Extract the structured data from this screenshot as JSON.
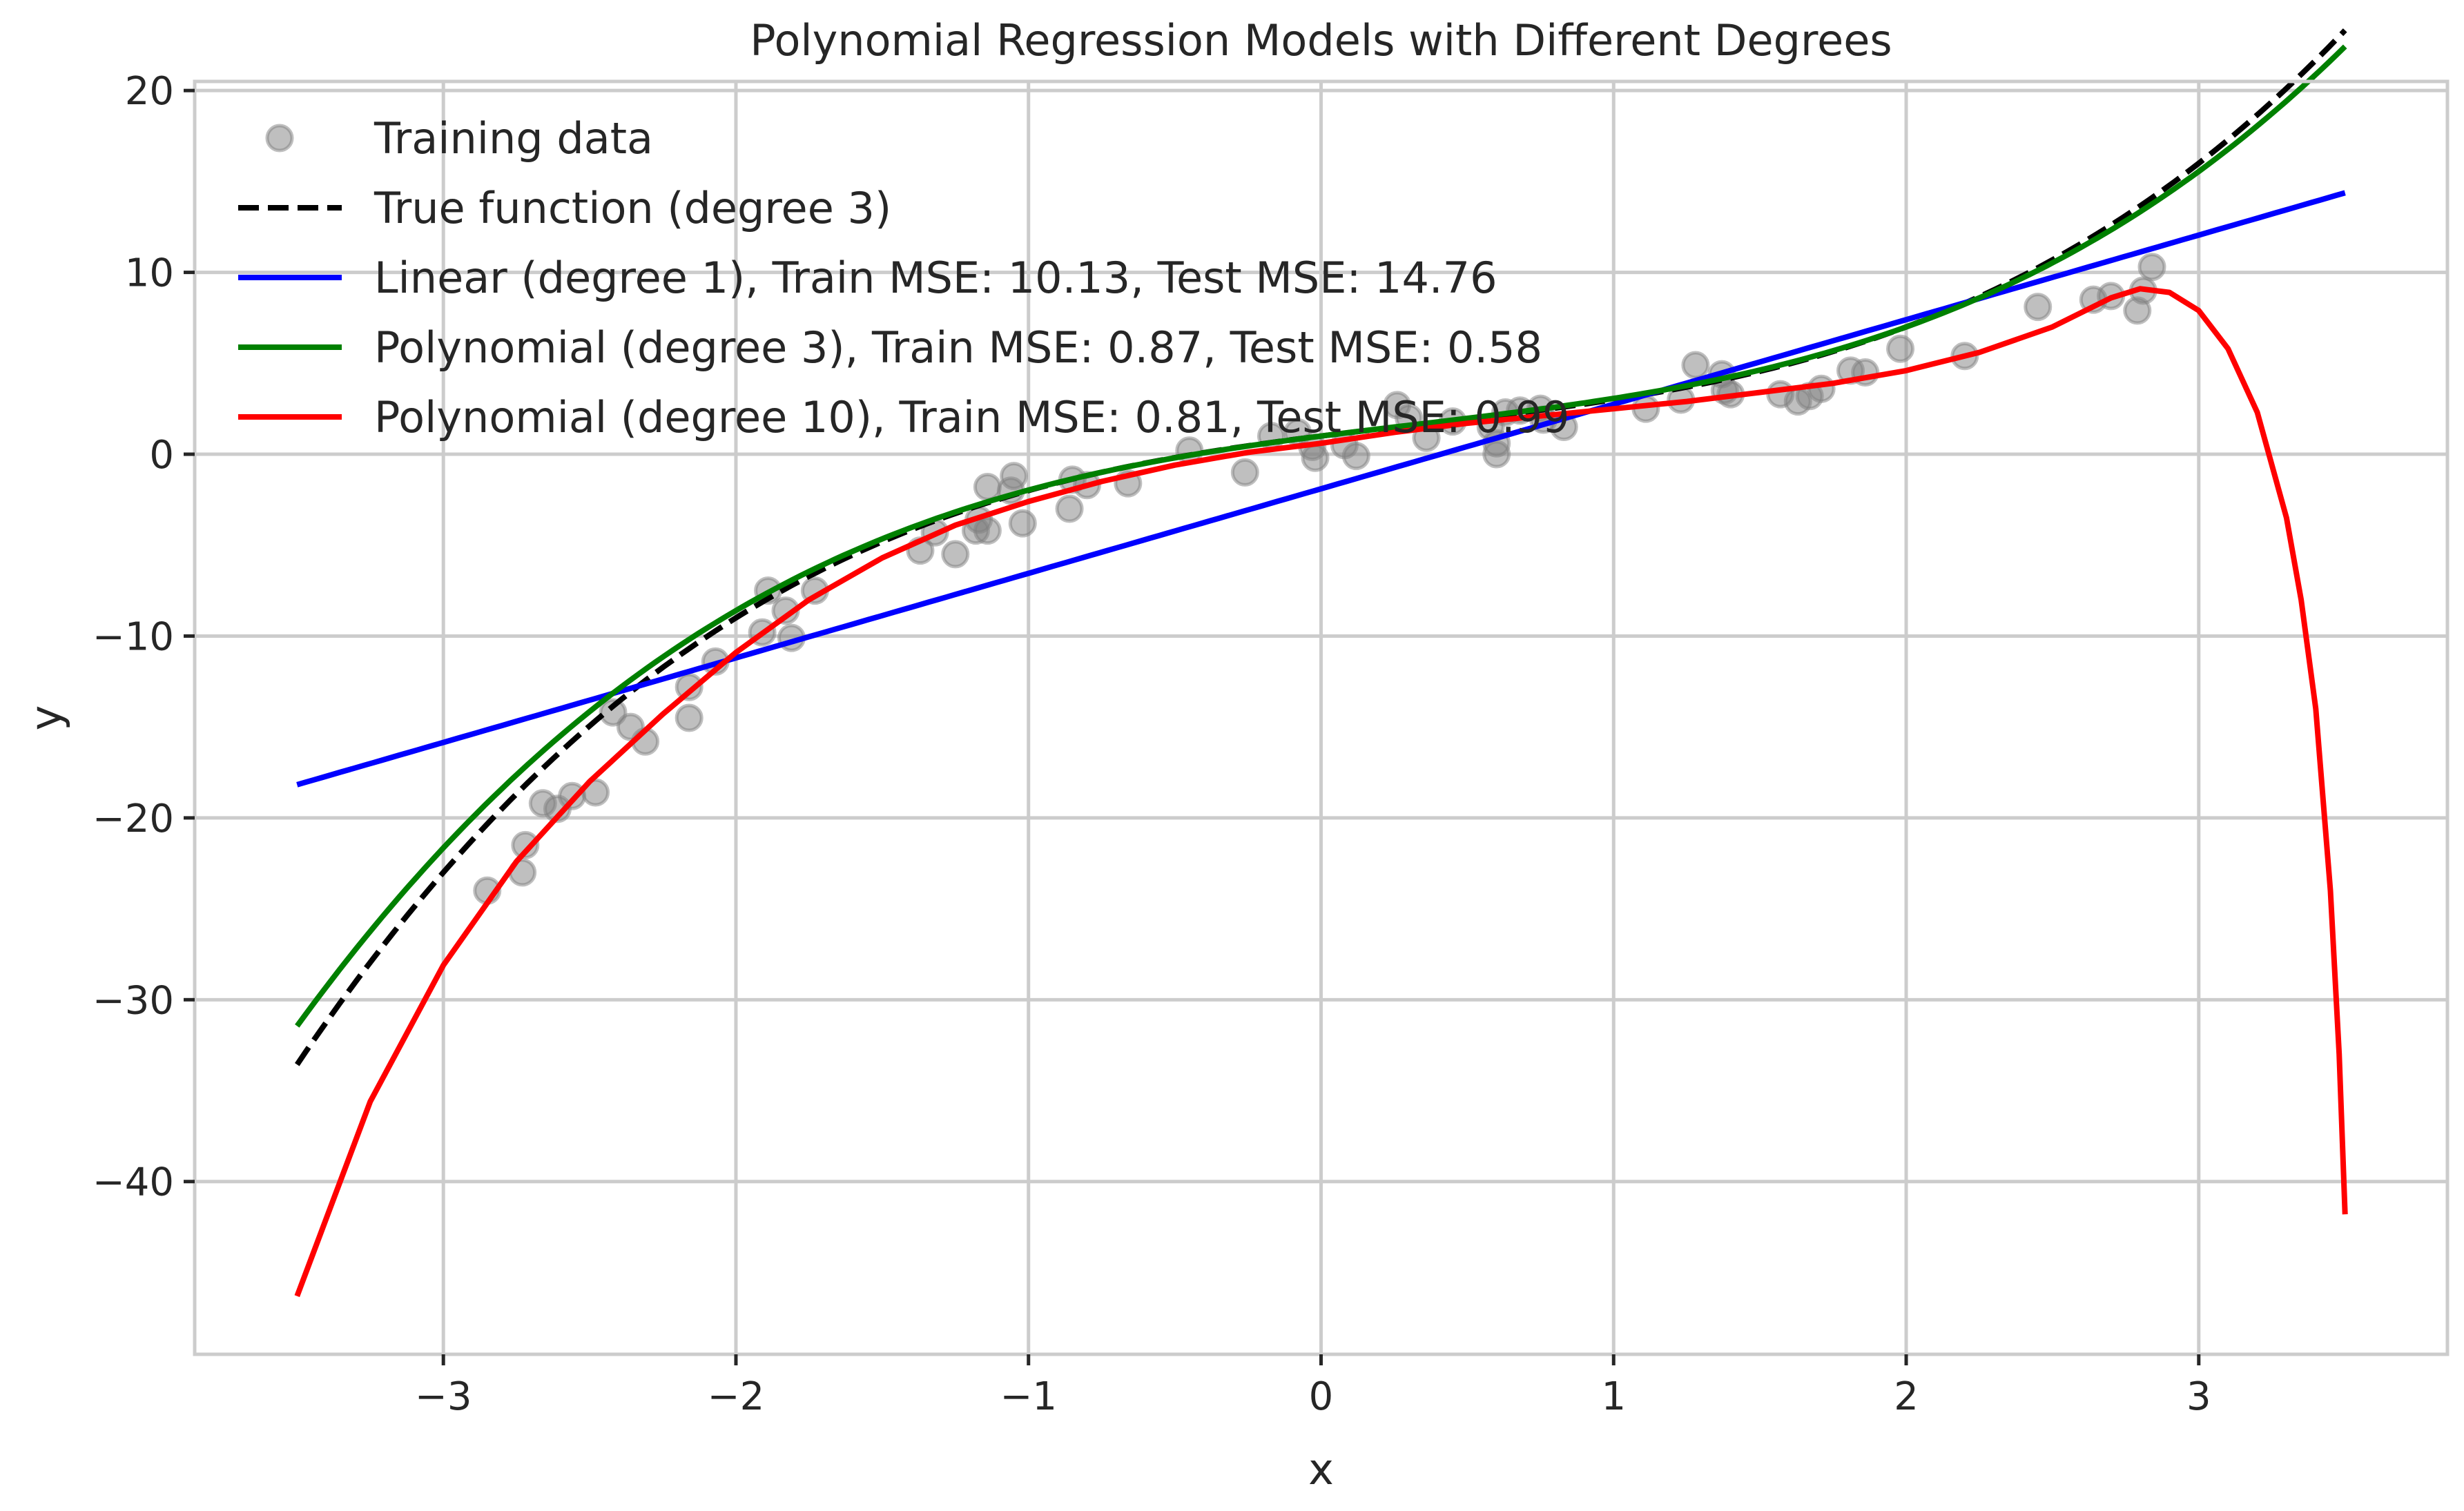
{
  "chart_data": {
    "type": "scatter+line",
    "title": "Polynomial Regression Models with Different Degrees",
    "xlabel": "x",
    "ylabel": "y",
    "xlim": [
      -3.85,
      3.85
    ],
    "ylim": [
      -49.5,
      20.5
    ],
    "x_ticks": [
      -3,
      -2,
      -1,
      0,
      1,
      2,
      3
    ],
    "x_tick_labels": [
      "−3",
      "−2",
      "−1",
      "0",
      "1",
      "2",
      "3"
    ],
    "y_ticks": [
      -40,
      -30,
      -20,
      -10,
      0,
      10,
      20
    ],
    "y_tick_labels": [
      "−40",
      "−30",
      "−20",
      "−10",
      "0",
      "10",
      "20"
    ],
    "grid": true,
    "legend_position": "top-left",
    "scatter": {
      "name": "Training data",
      "color": "#808080",
      "points": [
        [
          -2.85,
          -24.0
        ],
        [
          -2.73,
          -23.0
        ],
        [
          -2.72,
          -21.5
        ],
        [
          -2.66,
          -19.2
        ],
        [
          -2.61,
          -19.5
        ],
        [
          -2.56,
          -18.8
        ],
        [
          -2.48,
          -18.6
        ],
        [
          -2.42,
          -14.2
        ],
        [
          -2.36,
          -15.0
        ],
        [
          -2.31,
          -15.8
        ],
        [
          -2.16,
          -14.5
        ],
        [
          -2.16,
          -12.8
        ],
        [
          -2.07,
          -11.4
        ],
        [
          -1.91,
          -9.8
        ],
        [
          -1.89,
          -7.5
        ],
        [
          -1.83,
          -8.6
        ],
        [
          -1.81,
          -10.1
        ],
        [
          -1.73,
          -7.5
        ],
        [
          -1.37,
          -5.3
        ],
        [
          -1.32,
          -4.3
        ],
        [
          -1.25,
          -5.5
        ],
        [
          -1.18,
          -4.2
        ],
        [
          -1.17,
          -3.6
        ],
        [
          -1.14,
          -4.2
        ],
        [
          -1.14,
          -1.8
        ],
        [
          -1.06,
          -2.0
        ],
        [
          -1.05,
          -1.2
        ],
        [
          -1.02,
          -3.8
        ],
        [
          -0.86,
          -3.0
        ],
        [
          -0.85,
          -1.4
        ],
        [
          -0.8,
          -1.7
        ],
        [
          -0.66,
          -1.6
        ],
        [
          -0.45,
          0.2
        ],
        [
          -0.26,
          -1.0
        ],
        [
          -0.17,
          1.0
        ],
        [
          -0.08,
          1.2
        ],
        [
          -0.03,
          0.4
        ],
        [
          -0.02,
          -0.2
        ],
        [
          0.08,
          0.5
        ],
        [
          0.12,
          -0.1
        ],
        [
          0.26,
          2.7
        ],
        [
          0.3,
          2.0
        ],
        [
          0.36,
          0.9
        ],
        [
          0.45,
          1.8
        ],
        [
          0.58,
          1.5
        ],
        [
          0.6,
          0.6
        ],
        [
          0.6,
          0.0
        ],
        [
          0.63,
          2.3
        ],
        [
          0.68,
          2.4
        ],
        [
          0.75,
          2.5
        ],
        [
          0.76,
          1.9
        ],
        [
          0.83,
          1.5
        ],
        [
          1.11,
          2.5
        ],
        [
          1.23,
          3.0
        ],
        [
          1.28,
          4.9
        ],
        [
          1.37,
          4.4
        ],
        [
          1.38,
          3.5
        ],
        [
          1.4,
          3.3
        ],
        [
          1.57,
          3.3
        ],
        [
          1.63,
          2.9
        ],
        [
          1.67,
          3.2
        ],
        [
          1.71,
          3.6
        ],
        [
          1.81,
          4.6
        ],
        [
          1.86,
          4.5
        ],
        [
          1.98,
          5.8
        ],
        [
          2.2,
          5.4
        ],
        [
          2.45,
          8.1
        ],
        [
          2.64,
          8.5
        ],
        [
          2.7,
          8.7
        ],
        [
          2.79,
          7.9
        ],
        [
          2.81,
          9.0
        ],
        [
          2.84,
          10.3
        ]
      ]
    },
    "series": [
      {
        "name": "True function (degree 3)",
        "color": "#000000",
        "style": "dashed",
        "coefficients": [
          1,
          2,
          -0.5,
          0.5
        ]
      },
      {
        "name": "Linear (degree 1), Train MSE: 10.13, Test MSE: 14.76",
        "color": "#0000ff",
        "style": "solid",
        "coefficients": [
          -1.9,
          4.65
        ]
      },
      {
        "name": "Polynomial (degree 3), Train MSE: 0.87, Test MSE: 0.58",
        "color": "#008000",
        "style": "solid",
        "coefficients": [
          1.0,
          2.06,
          -0.45,
          0.46
        ]
      },
      {
        "name": "Polynomial (degree 10), Train MSE: 0.81, Test MSE: 0.99",
        "color": "#ff0000",
        "style": "solid",
        "points": [
          [
            -3.5,
            -46.3
          ],
          [
            -3.25,
            -35.6
          ],
          [
            -3.0,
            -28.1
          ],
          [
            -2.75,
            -22.4
          ],
          [
            -2.5,
            -18.0
          ],
          [
            -2.25,
            -14.3
          ],
          [
            -2.0,
            -10.9
          ],
          [
            -1.75,
            -8.0
          ],
          [
            -1.5,
            -5.7
          ],
          [
            -1.25,
            -3.9
          ],
          [
            -1.0,
            -2.6
          ],
          [
            -0.75,
            -1.5
          ],
          [
            -0.5,
            -0.6
          ],
          [
            -0.25,
            0.1
          ],
          [
            0.0,
            0.6
          ],
          [
            0.25,
            1.2
          ],
          [
            0.5,
            1.7
          ],
          [
            0.75,
            2.1
          ],
          [
            1.0,
            2.5
          ],
          [
            1.25,
            2.9
          ],
          [
            1.5,
            3.4
          ],
          [
            1.75,
            3.9
          ],
          [
            2.0,
            4.6
          ],
          [
            2.25,
            5.6
          ],
          [
            2.5,
            7.0
          ],
          [
            2.7,
            8.6
          ],
          [
            2.8,
            9.1
          ],
          [
            2.9,
            8.9
          ],
          [
            3.0,
            7.9
          ],
          [
            3.1,
            5.8
          ],
          [
            3.2,
            2.3
          ],
          [
            3.3,
            -3.5
          ],
          [
            3.35,
            -8.0
          ],
          [
            3.4,
            -14.0
          ],
          [
            3.45,
            -24.0
          ],
          [
            3.48,
            -33.0
          ],
          [
            3.5,
            -41.8
          ]
        ]
      }
    ]
  }
}
